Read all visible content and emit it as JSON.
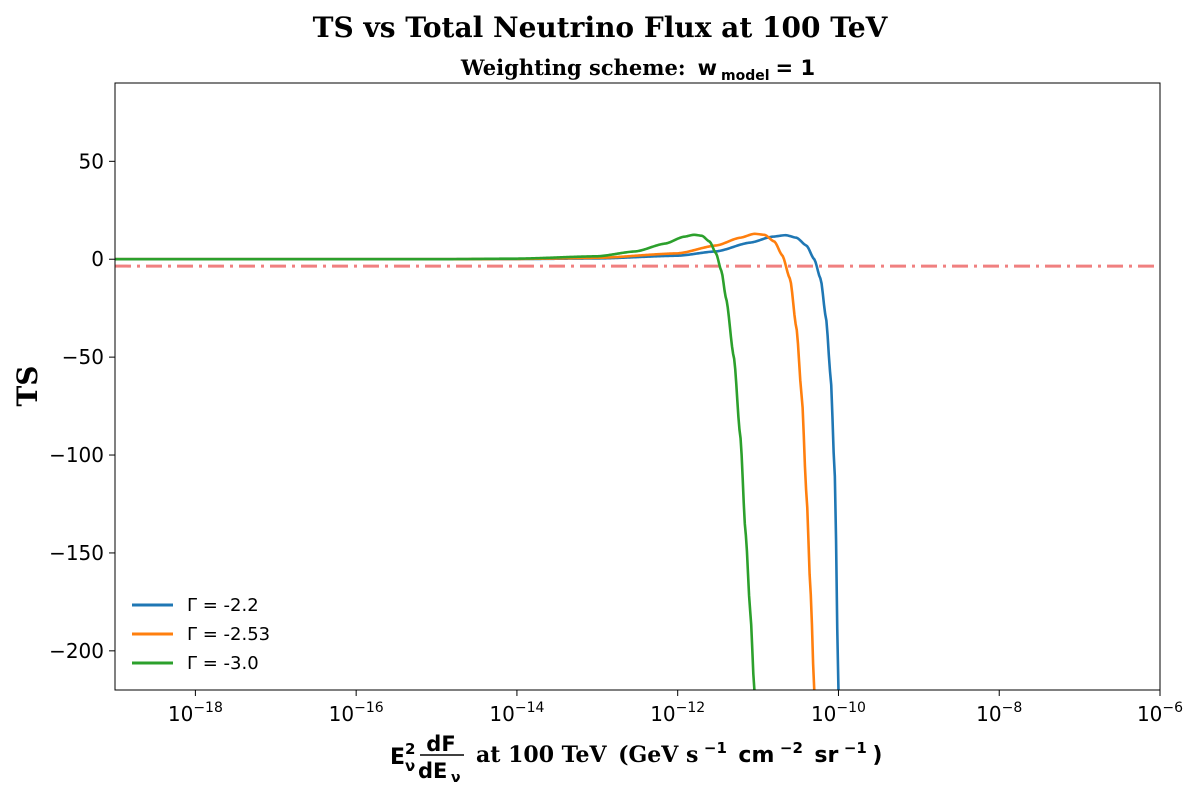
{
  "chart_data": {
    "type": "line",
    "title": "TS vs Total Neutrino Flux at 100 TeV",
    "subtitle": {
      "prefix": "Weighting scheme:",
      "symbol": "w",
      "subscript": "model",
      "suffix": "= 1"
    },
    "ylabel": "TS",
    "xlabel": {
      "E": "E",
      "nu": "ν",
      "sq": "2",
      "num": "dF",
      "den": "dE",
      "text": "at 100 TeV",
      "unit_open": "(GeV s",
      "exp1": "−1",
      "unit_mid1": "cm",
      "exp2": "−2",
      "unit_mid2": "sr",
      "exp3": "−1",
      "unit_close": ")"
    },
    "x_scale": "log",
    "xlim": [
      1e-19,
      1e-06
    ],
    "ylim": [
      -220,
      90
    ],
    "x_ticks": [
      {
        "base": "10",
        "exp": "−18",
        "value": 1e-18
      },
      {
        "base": "10",
        "exp": "−16",
        "value": 1e-16
      },
      {
        "base": "10",
        "exp": "−14",
        "value": 1e-14
      },
      {
        "base": "10",
        "exp": "−12",
        "value": 1e-12
      },
      {
        "base": "10",
        "exp": "−10",
        "value": 1e-10
      },
      {
        "base": "10",
        "exp": "−8",
        "value": 1e-08
      },
      {
        "base": "10",
        "exp": "−6",
        "value": 1e-06
      }
    ],
    "y_ticks": [
      {
        "label": "50",
        "value": 50
      },
      {
        "label": "0",
        "value": 0
      },
      {
        "label": "−50",
        "value": -50
      },
      {
        "label": "−100",
        "value": -100
      },
      {
        "label": "−150",
        "value": -150
      },
      {
        "label": "−200",
        "value": -200
      }
    ],
    "threshold_line": {
      "value": -3.5,
      "color": "#f08080",
      "style": "dash-dot"
    },
    "legend_position": "lower-left",
    "grid": false,
    "series": [
      {
        "name": "Γ = -2.2",
        "color": "#1f77b4",
        "points": [
          [
            1e-19,
            0
          ],
          [
            1e-15,
            0
          ],
          [
            1e-14,
            0.1
          ],
          [
            1e-13,
            0.4
          ],
          [
            1e-12,
            1.8
          ],
          [
            3e-12,
            4
          ],
          [
            8e-12,
            8.5
          ],
          [
            1.5e-11,
            11.5
          ],
          [
            2.2e-11,
            12.3
          ],
          [
            3e-11,
            11
          ],
          [
            4e-11,
            7
          ],
          [
            5e-11,
            0
          ],
          [
            6e-11,
            -10
          ],
          [
            7e-11,
            -30
          ],
          [
            8e-11,
            -60
          ],
          [
            9e-11,
            -110
          ],
          [
            1e-10,
            -220
          ]
        ]
      },
      {
        "name": "Γ = -2.53",
        "color": "#ff7f0e",
        "points": [
          [
            1e-19,
            0
          ],
          [
            1e-15,
            0
          ],
          [
            1e-14,
            0.15
          ],
          [
            1e-13,
            0.7
          ],
          [
            1e-12,
            3
          ],
          [
            3e-12,
            7
          ],
          [
            6e-12,
            11
          ],
          [
            9e-12,
            13
          ],
          [
            1.2e-11,
            12.5
          ],
          [
            1.6e-11,
            9
          ],
          [
            2e-11,
            2
          ],
          [
            2.5e-11,
            -10
          ],
          [
            3e-11,
            -35
          ],
          [
            3.5e-11,
            -70
          ],
          [
            4e-11,
            -120
          ],
          [
            4.5e-11,
            -170
          ],
          [
            5e-11,
            -220
          ]
        ]
      },
      {
        "name": "Γ = -3.0",
        "color": "#2ca02c",
        "points": [
          [
            1e-19,
            0
          ],
          [
            1e-15,
            0
          ],
          [
            1e-14,
            0.3
          ],
          [
            1e-13,
            1.5
          ],
          [
            3e-13,
            4
          ],
          [
            7e-13,
            8
          ],
          [
            1.2e-12,
            11.5
          ],
          [
            1.6e-12,
            12.5
          ],
          [
            2e-12,
            12
          ],
          [
            2.5e-12,
            9
          ],
          [
            3e-12,
            3
          ],
          [
            3.5e-12,
            -6
          ],
          [
            4e-12,
            -20
          ],
          [
            5e-12,
            -50
          ],
          [
            6e-12,
            -90
          ],
          [
            7e-12,
            -140
          ],
          [
            8e-12,
            -180
          ],
          [
            9e-12,
            -220
          ]
        ]
      }
    ]
  }
}
